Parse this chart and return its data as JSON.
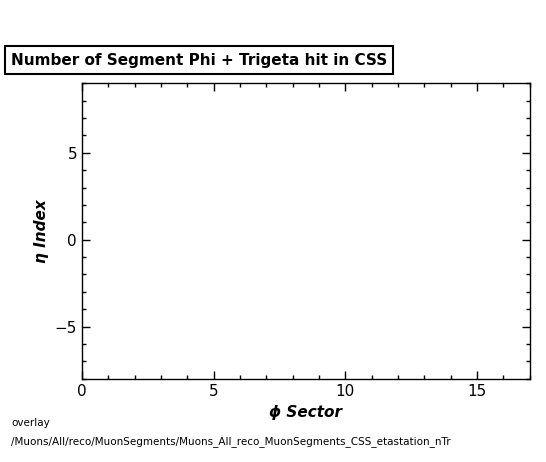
{
  "title": "Number of Segment Phi + Trigeta hit in CSS",
  "xlabel": "ϕ Sector",
  "ylabel": "η Index",
  "xlim": [
    0,
    17
  ],
  "ylim": [
    -8,
    9
  ],
  "xticks": [
    0,
    5,
    10,
    15
  ],
  "yticks": [
    -5,
    0,
    5
  ],
  "background_color": "#ffffff",
  "plot_bg_color": "#ffffff",
  "footer_line1": "overlay",
  "footer_line2": "/Muons/All/reco/MuonSegments/Muons_All_reco_MuonSegments_CSS_etastation_nTr",
  "title_fontsize": 11,
  "label_fontsize": 11,
  "tick_fontsize": 11,
  "footer_fontsize": 7.5
}
